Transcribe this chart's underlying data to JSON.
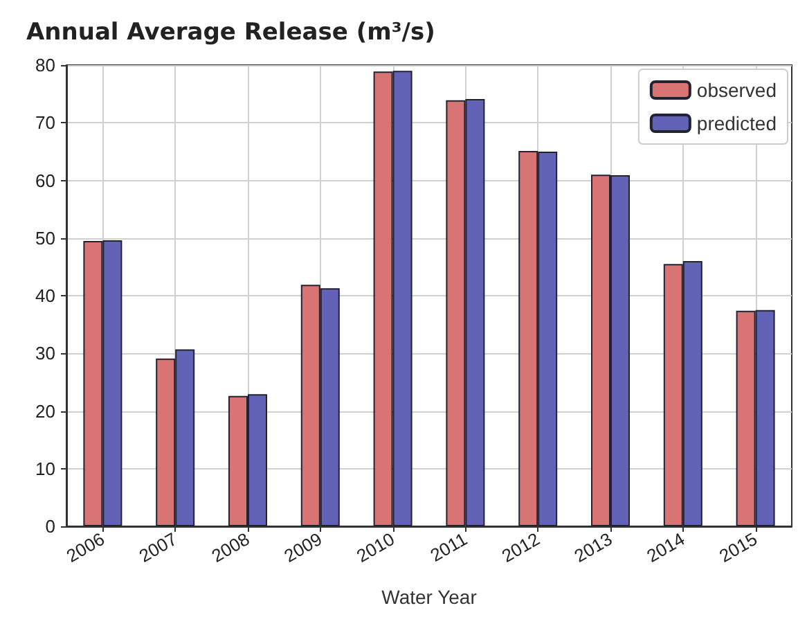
{
  "chart_data": {
    "type": "bar",
    "title": "Annual Average Release (m³/s)",
    "xlabel": "Water Year",
    "categories": [
      "2006",
      "2007",
      "2008",
      "2009",
      "2010",
      "2011",
      "2012",
      "2013",
      "2014",
      "2015"
    ],
    "series": [
      {
        "name": "observed",
        "color": "#d87474",
        "values": [
          49.5,
          29.1,
          22.6,
          41.9,
          78.9,
          73.9,
          65.1,
          61.0,
          45.5,
          37.4
        ]
      },
      {
        "name": "predicted",
        "color": "#6262b6",
        "values": [
          49.6,
          30.7,
          22.9,
          41.3,
          79.0,
          74.1,
          65.0,
          60.9,
          46.0,
          37.5
        ]
      }
    ],
    "ylim": [
      0,
      80
    ],
    "yticks": [
      0,
      10,
      20,
      30,
      40,
      50,
      60,
      70,
      80
    ],
    "grid": true,
    "legend": "top right"
  }
}
